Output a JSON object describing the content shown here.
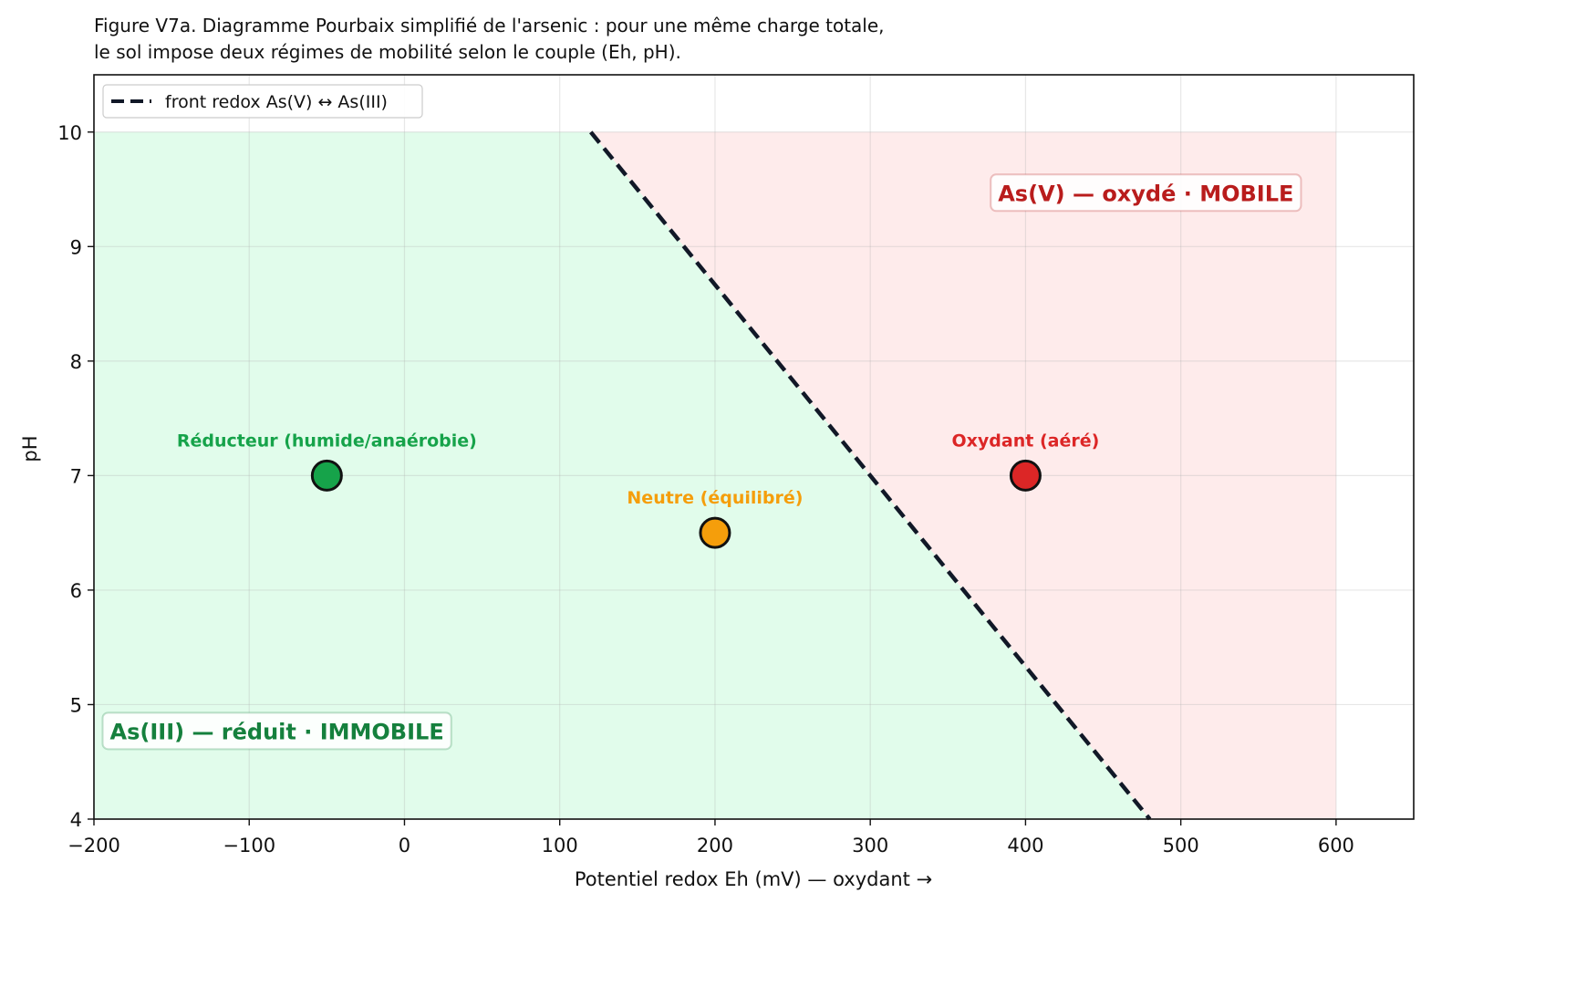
{
  "chart_data": {
    "type": "scatter",
    "title_lines": [
      "Figure V7a. Diagramme Pourbaix simplifié de l'arsenic : pour une même charge totale,",
      "le sol impose deux régimes de mobilité selon le couple (Eh, pH)."
    ],
    "xlabel": "Potentiel redox  Eh (mV)   —   oxydant →",
    "ylabel": "pH",
    "xlim": [
      -200,
      650
    ],
    "ylim": [
      4,
      10.5
    ],
    "xticks": [
      -200,
      -100,
      0,
      100,
      200,
      300,
      400,
      500,
      600
    ],
    "xtick_labels": [
      "−200",
      "−100",
      "0",
      "100",
      "200",
      "300",
      "400",
      "500",
      "600"
    ],
    "yticks": [
      4,
      5,
      6,
      7,
      8,
      9,
      10
    ],
    "ytick_labels": [
      "4",
      "5",
      "6",
      "7",
      "8",
      "9",
      "10"
    ],
    "grid": true,
    "legend": {
      "position": "top-left",
      "entries": [
        {
          "label": "front redox As(V) ↔ As(III)",
          "style": "dashed",
          "color": "#111827"
        }
      ]
    },
    "front_line": {
      "x": [
        120,
        480
      ],
      "y": [
        10,
        4
      ],
      "color": "#111827"
    },
    "regions": [
      {
        "label": "As(III) — réduit · IMMOBILE",
        "side": "reduced",
        "fill": "#dcfce7",
        "text_color": "#15803d",
        "label_anchor": [
          -195,
          4.77
        ]
      },
      {
        "label": "As(V) — oxydé · MOBILE",
        "side": "oxidized",
        "fill": "#fee2e2",
        "text_color": "#b91c1c",
        "label_anchor": [
          578,
          9.47
        ]
      }
    ],
    "region_extent": {
      "x": [
        -200,
        600
      ],
      "y": [
        4,
        10
      ]
    },
    "points": [
      {
        "label": "Réducteur (humide/anaérobie)",
        "x": -50,
        "y": 7.0,
        "color": "#16a34a"
      },
      {
        "label": "Neutre (équilibré)",
        "x": 200,
        "y": 6.5,
        "color": "#f59e0b"
      },
      {
        "label": "Oxydant (aéré)",
        "x": 400,
        "y": 7.0,
        "color": "#dc2626"
      }
    ]
  }
}
